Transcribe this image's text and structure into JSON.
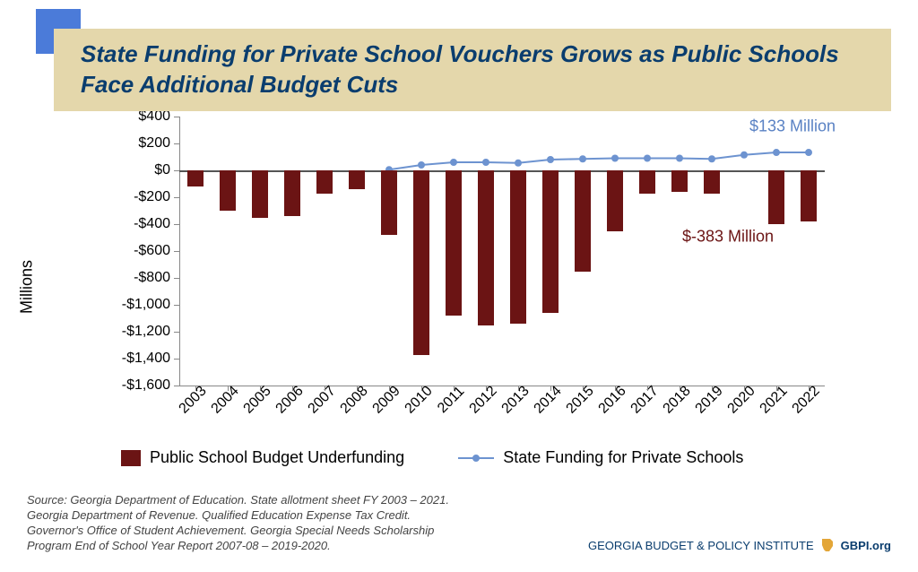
{
  "title": "State Funding for Private School Vouchers Grows as Public Schools Face Additional Budget Cuts",
  "accent_color": "#4b7bd9",
  "title_bg_color": "#e4d7ab",
  "title_text_color": "#0a3d6e",
  "chart": {
    "type": "bar+line",
    "ylabel": "Millions",
    "ylim": [
      -1600,
      400
    ],
    "ytick_step": 200,
    "ytick_labels": [
      "$400",
      "$200",
      "$0",
      "-$200",
      "-$400",
      "-$600",
      "-$800",
      "-$1,000",
      "-$1,200",
      "-$1,400",
      "-$1,600"
    ],
    "ytick_values": [
      400,
      200,
      0,
      -200,
      -400,
      -600,
      -800,
      -1000,
      -1200,
      -1400,
      -1600
    ],
    "x_categories": [
      "2003",
      "2004",
      "2005",
      "2006",
      "2007",
      "2008",
      "2009",
      "2010",
      "2011",
      "2012",
      "2013",
      "2014",
      "2015",
      "2016",
      "2017",
      "2018",
      "2019",
      "2020",
      "2021",
      "2022"
    ],
    "bar_series": {
      "label": "Public School Budget Underfunding",
      "color": "#6b1414",
      "values": [
        -120,
        -300,
        -350,
        -340,
        -170,
        -140,
        -480,
        -1370,
        -1080,
        -1150,
        -1140,
        -1060,
        -750,
        -450,
        -170,
        -160,
        -170,
        0,
        -400,
        -383
      ]
    },
    "line_series": {
      "label": "State Funding for Private Schools",
      "color": "#6d93d0",
      "marker_color": "#6d93d0",
      "line_width": 2,
      "marker_radius": 4,
      "values": [
        null,
        null,
        null,
        null,
        null,
        null,
        5,
        40,
        60,
        60,
        55,
        80,
        85,
        90,
        90,
        90,
        85,
        115,
        133,
        133
      ]
    },
    "annotations": [
      {
        "text": "$133 Million",
        "color": "#5a82c4",
        "x_index": 18.5,
        "y_value": 260
      },
      {
        "text": "$-383 Million",
        "color": "#6b1414",
        "x_index": 16.5,
        "y_value": -560
      }
    ],
    "bar_width_ratio": 0.5,
    "background_color": "#ffffff",
    "label_fontsize": 18,
    "tick_fontsize": 16
  },
  "legend": {
    "items": [
      {
        "type": "bar",
        "label": "Public School Budget Underfunding",
        "color": "#6b1414"
      },
      {
        "type": "line",
        "label": "State Funding for Private Schools",
        "color": "#6d93d0"
      }
    ]
  },
  "source_lines": [
    "Source: Georgia Department of Education. State allotment sheet FY 2003 – 2021.",
    "Georgia Department of Revenue. Qualified Education Expense Tax Credit.",
    "Governor's Office of Student Achievement. Georgia Special Needs Scholarship",
    "Program End of School Year Report 2007-08 – 2019-2020."
  ],
  "footer": {
    "org_name": "GEORGIA BUDGET & POLICY INSTITUTE",
    "site": "GBPI.org",
    "org_color": "#0a3d6e",
    "icon_color": "#e3a638"
  }
}
